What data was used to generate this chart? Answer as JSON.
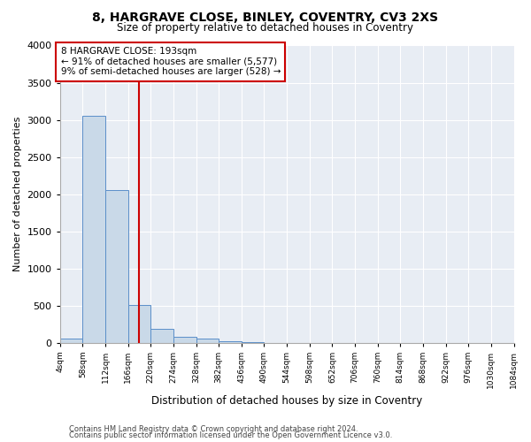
{
  "title": "8, HARGRAVE CLOSE, BINLEY, COVENTRY, CV3 2XS",
  "subtitle": "Size of property relative to detached houses in Coventry",
  "xlabel": "Distribution of detached houses by size in Coventry",
  "ylabel": "Number of detached properties",
  "bar_color": "#c9d9e8",
  "bar_edge_color": "#5b8fc9",
  "bg_color": "#e8edf4",
  "grid_color": "#ffffff",
  "annotation_line_color": "#cc0000",
  "annotation_box_color": "#cc0000",
  "annotation_text": "8 HARGRAVE CLOSE: 193sqm\n← 91% of detached houses are smaller (5,577)\n9% of semi-detached houses are larger (528) →",
  "property_size": 193,
  "footnote1": "Contains HM Land Registry data © Crown copyright and database right 2024.",
  "footnote2": "Contains public sector information licensed under the Open Government Licence v3.0.",
  "bin_edges": [
    4,
    58,
    112,
    166,
    220,
    274,
    328,
    382,
    436,
    490,
    544,
    598,
    652,
    706,
    760,
    814,
    868,
    922,
    976,
    1030,
    1084
  ],
  "bar_values": [
    50,
    3050,
    2050,
    510,
    185,
    80,
    55,
    20,
    5,
    0,
    0,
    0,
    0,
    0,
    0,
    0,
    0,
    0,
    0,
    0
  ],
  "ylim": [
    0,
    4000
  ],
  "yticks": [
    0,
    500,
    1000,
    1500,
    2000,
    2500,
    3000,
    3500,
    4000
  ]
}
